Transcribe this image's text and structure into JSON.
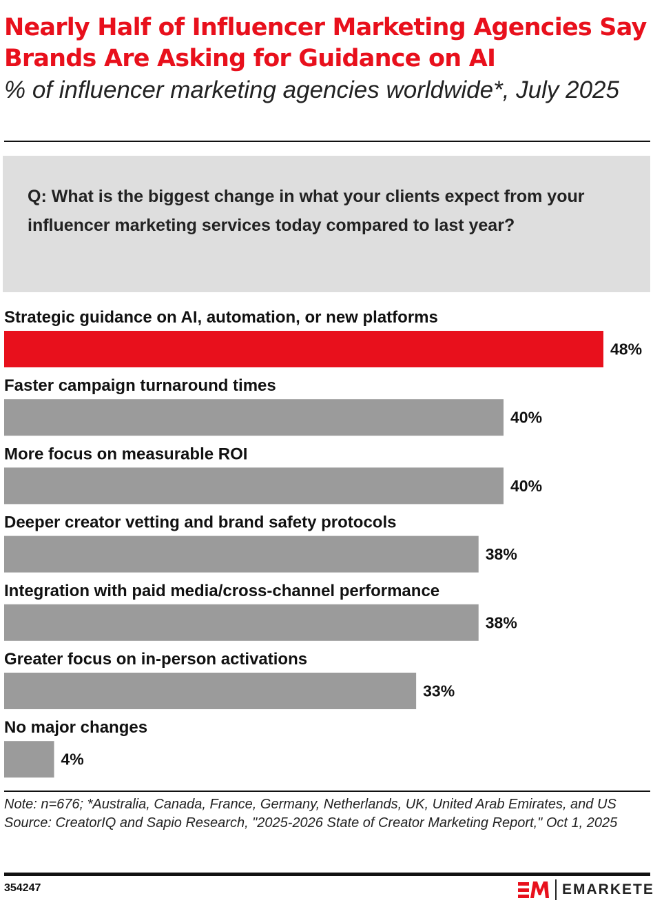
{
  "header": {
    "title": "Nearly Half of Influencer Marketing Agencies Say Brands Are Asking for Guidance on AI",
    "subtitle": "% of influencer marketing agencies worldwide*, July 2025"
  },
  "question": "Q: What is the biggest change in what your clients expect from your influencer marketing services today compared to last year?",
  "chart_data": {
    "type": "bar",
    "orientation": "horizontal",
    "categories": [
      "Strategic guidance on AI, automation, or new platforms",
      "Faster campaign turnaround times",
      "More focus on measurable ROI",
      "Deeper creator vetting and brand safety protocols",
      "Integration with paid media/cross-channel performance",
      "Greater focus on in-person activations",
      "No major changes"
    ],
    "values": [
      48,
      40,
      40,
      38,
      38,
      33,
      4
    ],
    "labels": [
      "48%",
      "40%",
      "40%",
      "38%",
      "38%",
      "33%",
      "4%"
    ],
    "unit": "%",
    "highlight_color": "#e8101c",
    "bar_color": "#9b9b9b",
    "grid": false
  },
  "footer": {
    "note": "Note: n=676; *Australia, Canada, France, Germany, Netherlands, UK, United Arab Emirates, and US",
    "source": "Source: CreatorIQ and Sapio Research, \"2025-2026 State of Creator Marketing Report,\" Oct 1, 2025",
    "chart_id": "354247",
    "brand": "EMARKETER"
  }
}
